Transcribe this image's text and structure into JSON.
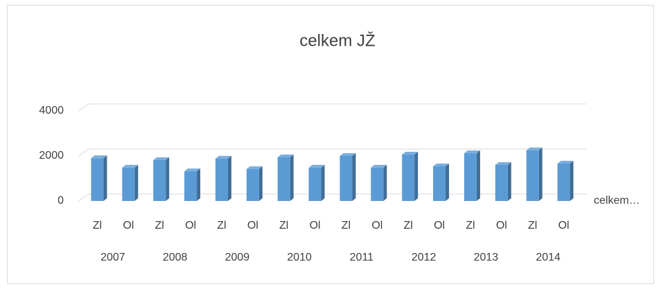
{
  "chart_data": {
    "type": "bar3d",
    "title": "celkem JŽ",
    "categories": [
      "Zl",
      "Ol",
      "Zl",
      "Ol",
      "Zl",
      "Ol",
      "Zl",
      "Ol",
      "Zl",
      "Ol",
      "Zl",
      "Ol",
      "Zl",
      "Ol",
      "Zl",
      "Ol"
    ],
    "groups": [
      "2007",
      "2008",
      "2009",
      "2010",
      "2011",
      "2012",
      "2013",
      "2014"
    ],
    "series": [
      {
        "name": "celkem…",
        "color": "#5b9bd5",
        "values": [
          1900,
          1480,
          1815,
          1320,
          1880,
          1415,
          1940,
          1480,
          2000,
          1480,
          2060,
          1540,
          2120,
          1600,
          2250,
          1660
        ]
      }
    ],
    "ylim": [
      0,
      4000
    ],
    "yticks": [
      0,
      2000,
      4000
    ],
    "grid": true,
    "legend": "right"
  }
}
